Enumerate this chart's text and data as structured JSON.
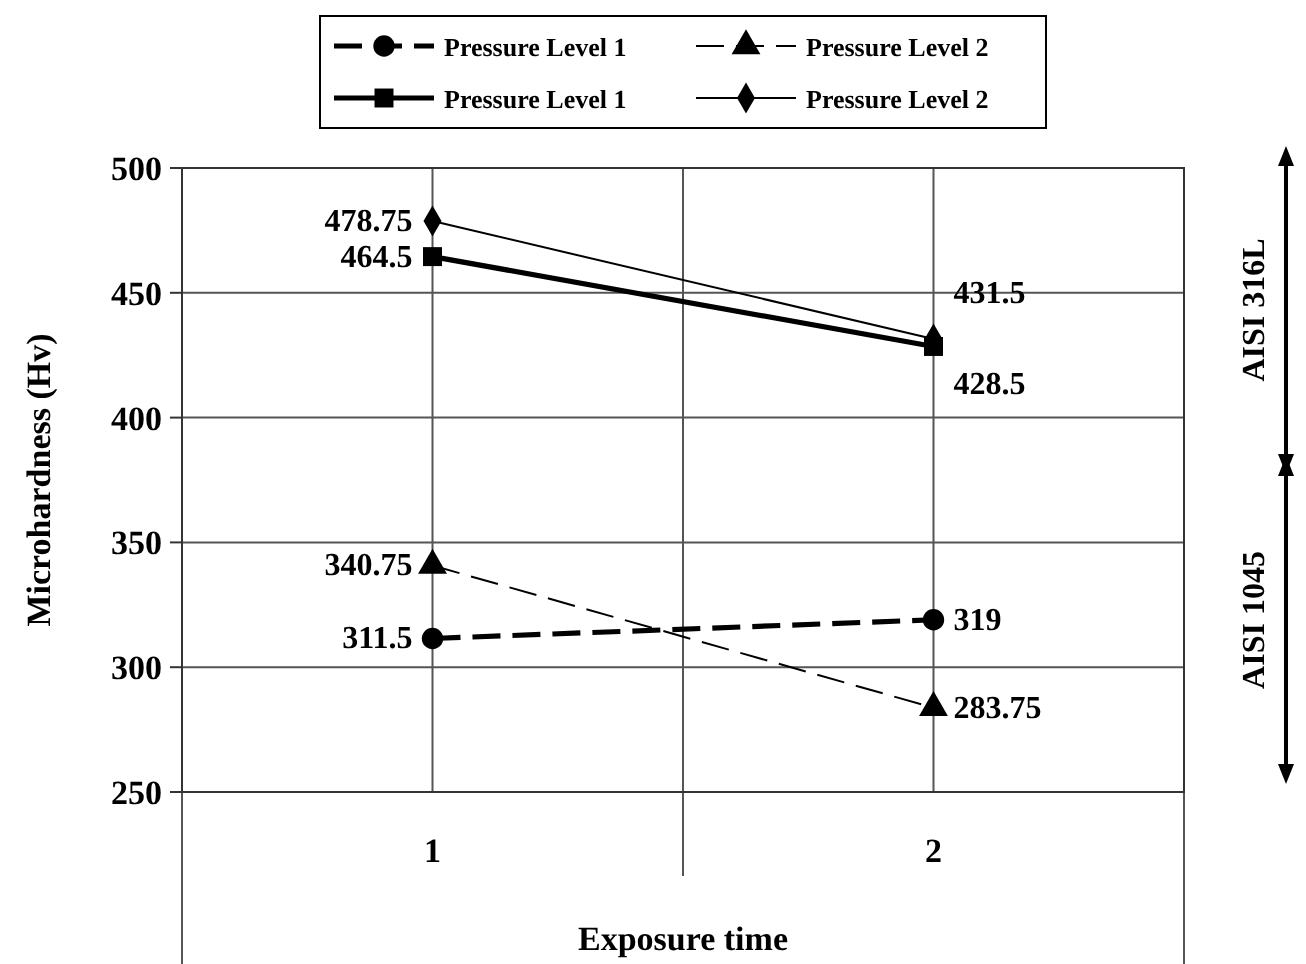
{
  "chart_data": {
    "type": "line",
    "xlabel": "Exposure time",
    "ylabel": "Microhardness (Hv)",
    "categories": [
      "1",
      "2"
    ],
    "series": [
      {
        "name": "Pressure Level 1",
        "color": "#000000",
        "values": [
          311.5,
          319
        ],
        "marker": "circle",
        "line_style": "dashed"
      },
      {
        "name": "Pressure Level 2",
        "color": "#000000",
        "values": [
          340.75,
          283.75
        ],
        "marker": "triangle",
        "line_style": "dashed"
      },
      {
        "name": "Pressure Level 1",
        "color": "#000000",
        "values": [
          464.5,
          428.5
        ],
        "marker": "square",
        "line_style": "solid"
      },
      {
        "name": "Pressure Level 2",
        "color": "#000000",
        "values": [
          478.75,
          431.5
        ],
        "marker": "diamond",
        "line_style": "solid"
      }
    ],
    "ylim": [
      250,
      500
    ],
    "yticks": [
      250,
      300,
      350,
      400,
      450,
      500
    ],
    "grid": true,
    "legend": "top",
    "data_labels": true,
    "annotations": [
      "AISI 316L",
      "AISI 1045"
    ]
  }
}
